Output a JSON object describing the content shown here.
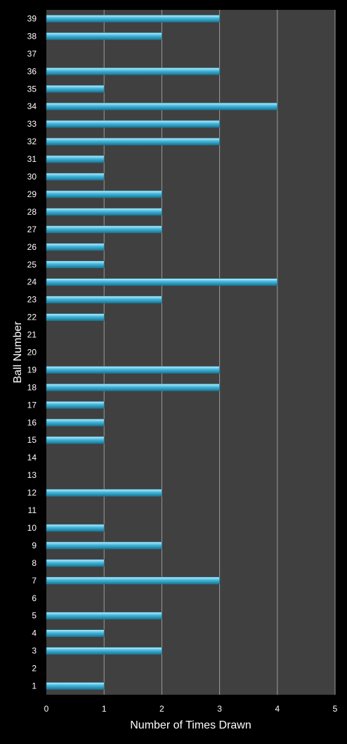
{
  "chart_data": {
    "type": "bar",
    "orientation": "horizontal",
    "xlabel": "Number of Times Drawn",
    "ylabel": "Ball Number",
    "xlim": [
      0,
      5
    ],
    "x_ticks": [
      "0",
      "1",
      "2",
      "3",
      "4",
      "5"
    ],
    "grid": "vertical",
    "categories": [
      "1",
      "2",
      "3",
      "4",
      "5",
      "6",
      "7",
      "8",
      "9",
      "10",
      "11",
      "12",
      "13",
      "14",
      "15",
      "16",
      "17",
      "18",
      "19",
      "20",
      "21",
      "22",
      "23",
      "24",
      "25",
      "26",
      "27",
      "28",
      "29",
      "30",
      "31",
      "32",
      "33",
      "34",
      "35",
      "36",
      "37",
      "38",
      "39"
    ],
    "values": [
      1,
      0,
      2,
      1,
      2,
      0,
      3,
      1,
      2,
      1,
      0,
      2,
      0,
      0,
      1,
      1,
      1,
      3,
      3,
      0,
      0,
      1,
      2,
      4,
      1,
      1,
      2,
      2,
      2,
      1,
      1,
      3,
      3,
      4,
      1,
      3,
      0,
      2,
      3
    ],
    "colors": {
      "background": "#000000",
      "plot_area": "#404040",
      "gridline": "#9a9a9a",
      "bar": "#41b6db",
      "bar_light": "#bfeefb",
      "bar_dark": "#1b7594",
      "text": "#ffffff"
    }
  }
}
